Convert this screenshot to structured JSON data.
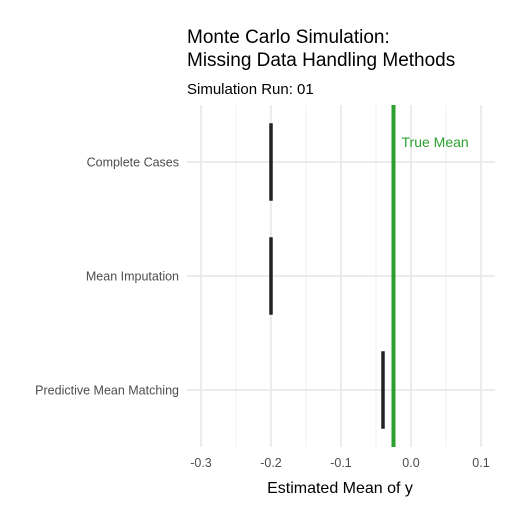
{
  "chart_data": {
    "type": "dot-interval",
    "title_lines": [
      "Monte Carlo Simulation:",
      "Missing Data Handling Methods"
    ],
    "subtitle": "Simulation Run: 01",
    "xlabel": "Estimated Mean of y",
    "ylabel": "",
    "categories": [
      "Complete Cases",
      "Mean Imputation",
      "Predictive Mean Matching"
    ],
    "estimates": [
      -0.2,
      -0.2,
      -0.04
    ],
    "xlim": [
      -0.32,
      0.12
    ],
    "xticks": [
      -0.3,
      -0.2,
      -0.1,
      0.0,
      0.1
    ],
    "xtick_labels": [
      "-0.3",
      "-0.2",
      "-0.1",
      "0.0",
      "0.1"
    ],
    "grid": true,
    "reference_line": {
      "label": "True Mean",
      "value": -0.025,
      "color": "#2ca02c"
    },
    "mark_color": "#222222"
  }
}
